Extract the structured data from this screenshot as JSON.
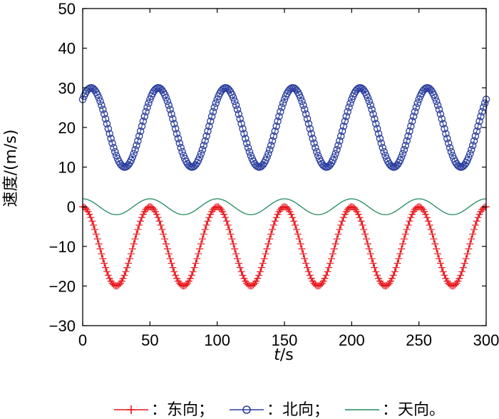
{
  "chart_data": {
    "type": "line",
    "xlabel": "t/s",
    "xlabel_parts": {
      "var": "t",
      "sep": "/",
      "unit": "s"
    },
    "ylabel": "速度/(m/s)",
    "xlim": [
      0,
      300
    ],
    "ylim": [
      -30,
      50
    ],
    "x_ticks": [
      "0",
      "50",
      "100",
      "150",
      "200",
      "250",
      "300"
    ],
    "y_ticks": [
      "−30",
      "−20",
      "−10",
      "0",
      "10",
      "20",
      "30",
      "40",
      "50"
    ],
    "grid": false,
    "legend_position": "bottom",
    "x_sample_step": 1,
    "series": [
      {
        "name": "：东向；",
        "color": "#e8151b",
        "marker": "plus",
        "model": "sine",
        "offset": -10,
        "amplitude": 10,
        "period": 50,
        "phase_deg": 90,
        "values": [
          -1,
          -20,
          0,
          -20,
          0,
          -20,
          0,
          -20,
          0,
          -20,
          0,
          -20,
          -1
        ]
      },
      {
        "name": "：北向；",
        "color": "#2b3f9e",
        "marker": "circle",
        "model": "sine",
        "offset": 20,
        "amplitude": 10,
        "period": 50,
        "phase_deg": 45,
        "values": [
          27,
          30,
          10,
          30,
          10,
          30,
          10,
          30,
          10,
          30,
          10,
          30,
          10,
          27
        ]
      },
      {
        "name": "：天向。",
        "color": "#1f8a5c",
        "marker": "none",
        "model": "sine",
        "offset": 0,
        "amplitude": 2,
        "period": 50,
        "phase_deg": 90,
        "values": [
          2,
          -2,
          2,
          -2,
          2,
          -2,
          2,
          -2,
          2,
          -2,
          2,
          -2,
          1
        ]
      }
    ]
  }
}
